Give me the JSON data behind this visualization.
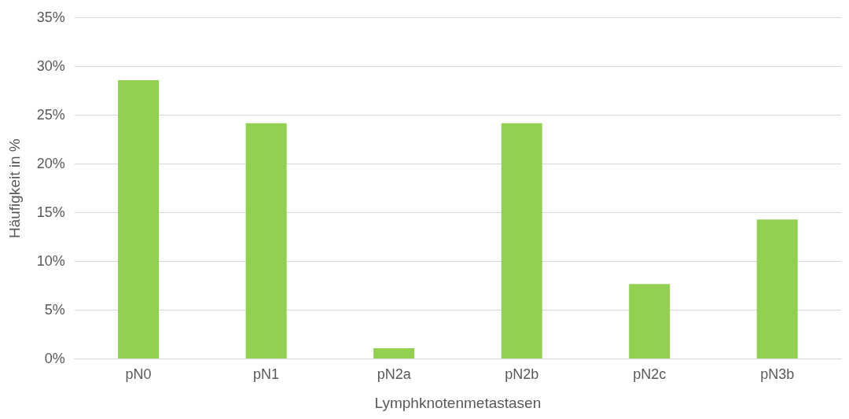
{
  "chart_data": {
    "type": "bar",
    "xlabel": "Lymphknotenmetastasen",
    "ylabel": "Häufigkeit in %",
    "categories": [
      "pN0",
      "pN1",
      "pN2a",
      "pN2b",
      "pN2c",
      "pN3b"
    ],
    "values": [
      28.6,
      24.2,
      1.1,
      24.2,
      7.7,
      14.3
    ],
    "color": "#92d050",
    "ylim": [
      0,
      35
    ],
    "yticks": [
      {
        "value": 0,
        "label": "0%"
      },
      {
        "value": 5,
        "label": "5%"
      },
      {
        "value": 10,
        "label": "10%"
      },
      {
        "value": 15,
        "label": "15%"
      },
      {
        "value": 20,
        "label": "20%"
      },
      {
        "value": 25,
        "label": "25%"
      },
      {
        "value": 30,
        "label": "30%"
      },
      {
        "value": 35,
        "label": "35%"
      }
    ],
    "grid": "y",
    "legend": false
  }
}
